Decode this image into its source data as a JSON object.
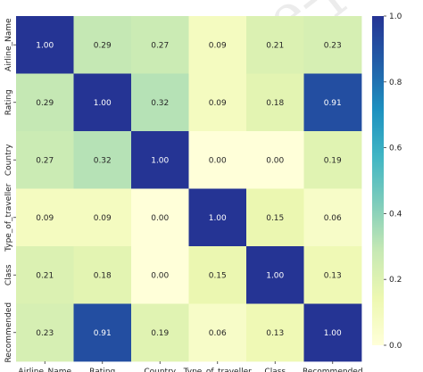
{
  "chart_data": {
    "type": "heatmap",
    "title": "",
    "xlabel": "",
    "ylabel": "",
    "x_categories": [
      "Airline_Name",
      "Rating",
      "Country",
      "Type_of_traveller",
      "Class",
      "Recommended"
    ],
    "y_categories": [
      "Airline_Name",
      "Rating",
      "Country",
      "Type_of_traveller",
      "Class",
      "Recommended"
    ],
    "values": [
      [
        1.0,
        0.29,
        0.27,
        0.09,
        0.21,
        0.23
      ],
      [
        0.29,
        1.0,
        0.32,
        0.09,
        0.18,
        0.91
      ],
      [
        0.27,
        0.32,
        1.0,
        0.0,
        0.0,
        0.19
      ],
      [
        0.09,
        0.09,
        0.0,
        1.0,
        0.15,
        0.06
      ],
      [
        0.21,
        0.18,
        0.0,
        0.15,
        1.0,
        0.13
      ],
      [
        0.23,
        0.91,
        0.19,
        0.06,
        0.13,
        1.0
      ]
    ],
    "value_format": "0.00",
    "colorscale": "YlGnBu",
    "colorbar": {
      "range": [
        0.0,
        1.0
      ],
      "ticks": [
        0.0,
        0.2,
        0.4,
        0.6,
        0.8,
        1.0
      ],
      "tick_labels": [
        "0.0",
        "0.2",
        "0.4",
        "0.6",
        "0.8",
        "1.0"
      ]
    },
    "colors": {
      "stops": [
        "#ffffd9",
        "#edf8b1",
        "#c7e9b4",
        "#7fcdbb",
        "#41b6c4",
        "#1d91c0",
        "#225ea8",
        "#253494"
      ],
      "text_dark": "#262626",
      "text_light": "#ffffff"
    },
    "watermark": "Journal Pre-proof"
  }
}
